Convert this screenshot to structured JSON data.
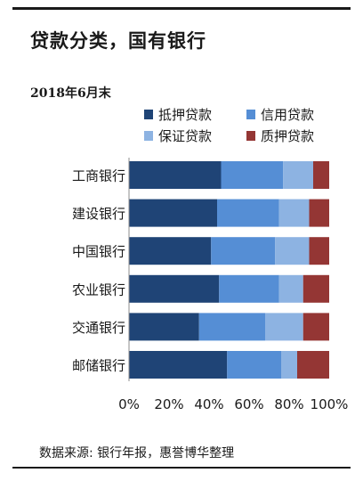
{
  "header": {
    "title": "贷款分类，国有银行",
    "subtitle": "2018年6月末"
  },
  "footer": {
    "source": "数据来源: 银行年报，惠誉博华整理"
  },
  "colors": {
    "抵押贷款": "#1f4476",
    "信用贷款": "#558ed5",
    "保证贷款": "#8db3e2",
    "质押贷款": "#943634"
  },
  "chart_data": {
    "type": "bar",
    "orientation": "horizontal",
    "stacked": true,
    "categories": [
      "工商银行",
      "建设银行",
      "中国银行",
      "农业银行",
      "交通银行",
      "邮储银行"
    ],
    "series": [
      {
        "name": "抵押贷款",
        "values": [
          46,
          44,
          41,
          45,
          35,
          49
        ]
      },
      {
        "name": "信用贷款",
        "values": [
          31,
          31,
          32,
          30,
          33,
          27
        ]
      },
      {
        "name": "保证贷款",
        "values": [
          15,
          15,
          17,
          12,
          19,
          8
        ]
      },
      {
        "name": "质押贷款",
        "values": [
          8,
          10,
          10,
          13,
          13,
          16
        ]
      }
    ],
    "x_ticks": [
      "0%",
      "20%",
      "40%",
      "60%",
      "80%",
      "100%"
    ],
    "xlim": [
      0,
      100
    ],
    "legend_position": "top",
    "grid": false
  }
}
